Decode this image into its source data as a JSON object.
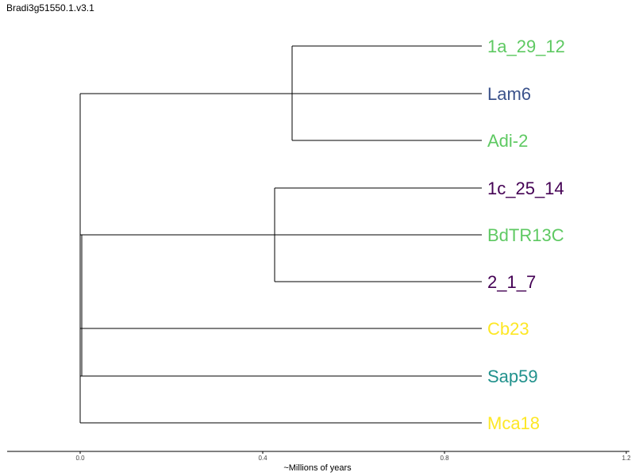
{
  "title": "Bradi3g51550.1.v3.1",
  "tree": {
    "leaves": [
      {
        "label": "1a_29_12",
        "color": "#5ec962"
      },
      {
        "label": "Lam6",
        "color": "#3b528b"
      },
      {
        "label": "Adi-2",
        "color": "#5ec962"
      },
      {
        "label": "1c_25_14",
        "color": "#440154"
      },
      {
        "label": "BdTR13C",
        "color": "#5ec962"
      },
      {
        "label": "2_1_7",
        "color": "#440154"
      },
      {
        "label": "Cb23",
        "color": "#fde725"
      },
      {
        "label": "Sap59",
        "color": "#21918c"
      },
      {
        "label": "Mca18",
        "color": "#fde725"
      }
    ],
    "branch_color": "#000000"
  },
  "axis": {
    "title": "~Millions of years",
    "ticks": [
      "0.0",
      "0.4",
      "0.8",
      "1.2"
    ]
  }
}
